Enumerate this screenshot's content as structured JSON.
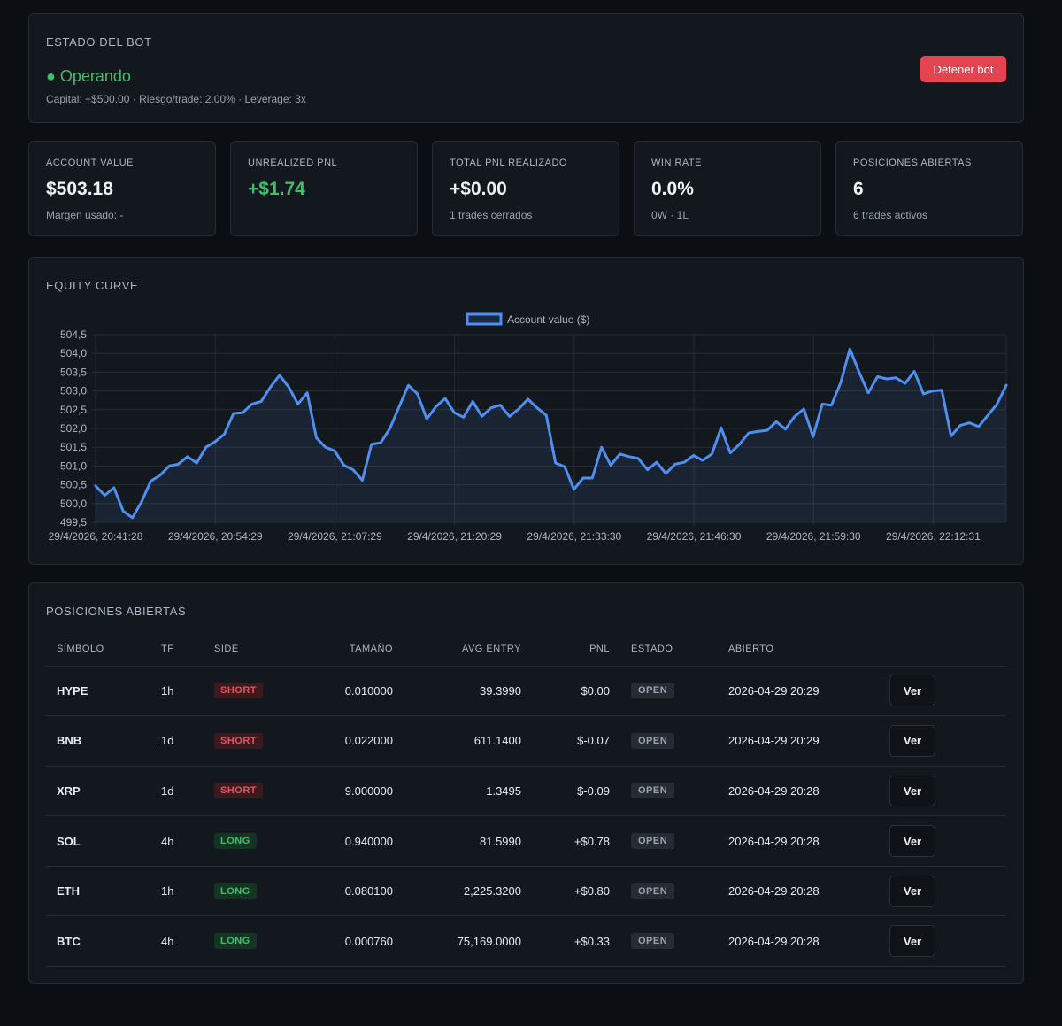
{
  "status": {
    "title": "ESTADO DEL BOT",
    "state": "● Operando",
    "meta": "Capital: +$500.00 · Riesgo/trade: 2.00% · Leverage: 3x",
    "stop_label": "Detener bot"
  },
  "stats": [
    {
      "label": "ACCOUNT VALUE",
      "value": "$503.18",
      "sub": "Margen usado: -"
    },
    {
      "label": "UNREALIZED PNL",
      "value": "+$1.74",
      "sub": ""
    },
    {
      "label": "TOTAL PNL REALIZADO",
      "value": "+$0.00",
      "sub": "1 trades cerrados"
    },
    {
      "label": "WIN RATE",
      "value": "0.0%",
      "sub": "0W · 1L"
    },
    {
      "label": "POSICIONES ABIERTAS",
      "value": "6",
      "sub": "6 trades activos"
    }
  ],
  "equity": {
    "title": "EQUITY CURVE"
  },
  "chart_data": {
    "type": "area",
    "legend": "Account value ($)",
    "legend_position": "top-center",
    "grid": true,
    "ylim": [
      499.5,
      504.5
    ],
    "y_ticks": [
      "504,5",
      "504,0",
      "503,5",
      "503,0",
      "502,5",
      "502,0",
      "501,5",
      "501,0",
      "500,5",
      "500,0",
      "499,5"
    ],
    "x_tick_labels": [
      "29/4/2026, 20:41:28",
      "29/4/2026, 20:54:29",
      "29/4/2026, 21:07:29",
      "29/4/2026, 21:20:29",
      "29/4/2026, 21:33:30",
      "29/4/2026, 21:46:30",
      "29/4/2026, 21:59:30",
      "29/4/2026, 22:12:31"
    ],
    "series": [
      {
        "name": "Account value ($)",
        "color": "#4f8ff0",
        "values": [
          500.47,
          500.22,
          500.42,
          499.8,
          499.62,
          500.05,
          500.6,
          500.75,
          501.0,
          501.05,
          501.25,
          501.08,
          501.5,
          501.65,
          501.85,
          502.4,
          502.42,
          502.65,
          502.72,
          503.1,
          503.42,
          503.1,
          502.65,
          502.95,
          501.75,
          501.5,
          501.4,
          501.02,
          500.9,
          500.62,
          501.58,
          501.62,
          502.0,
          502.58,
          503.15,
          502.92,
          502.25,
          502.58,
          502.8,
          502.42,
          502.3,
          502.72,
          502.32,
          502.55,
          502.62,
          502.32,
          502.52,
          502.78,
          502.55,
          502.35,
          501.08,
          500.98,
          500.38,
          500.68,
          500.68,
          501.5,
          501.02,
          501.32,
          501.25,
          501.2,
          500.9,
          501.1,
          500.8,
          501.05,
          501.1,
          501.28,
          501.15,
          501.32,
          502.02,
          501.35,
          501.58,
          501.88,
          501.92,
          501.95,
          502.18,
          501.98,
          502.32,
          502.52,
          501.78,
          502.65,
          502.62,
          503.22,
          504.12,
          503.5,
          502.95,
          503.38,
          503.32,
          503.35,
          503.2,
          503.52,
          502.92,
          503.0,
          503.02,
          501.8,
          502.08,
          502.15,
          502.05,
          502.35,
          502.65,
          503.15
        ]
      }
    ]
  },
  "positions": {
    "title": "POSICIONES ABIERTAS",
    "headers": [
      "SÍMBOLO",
      "TF",
      "SIDE",
      "TAMAÑO",
      "AVG ENTRY",
      "PNL",
      "ESTADO",
      "ABIERTO",
      ""
    ],
    "rows": [
      {
        "symbol": "HYPE",
        "tf": "1h",
        "side": "SHORT",
        "size": "0.010000",
        "entry": "39.3990",
        "pnl": "$0.00",
        "pnl_color": "red",
        "state": "OPEN",
        "opened": "2026-04-29 20:29",
        "action": "Ver"
      },
      {
        "symbol": "BNB",
        "tf": "1d",
        "side": "SHORT",
        "size": "0.022000",
        "entry": "611.1400",
        "pnl": "$-0.07",
        "pnl_color": "red",
        "state": "OPEN",
        "opened": "2026-04-29 20:29",
        "action": "Ver"
      },
      {
        "symbol": "XRP",
        "tf": "1d",
        "side": "SHORT",
        "size": "9.000000",
        "entry": "1.3495",
        "pnl": "$-0.09",
        "pnl_color": "red",
        "state": "OPEN",
        "opened": "2026-04-29 20:28",
        "action": "Ver"
      },
      {
        "symbol": "SOL",
        "tf": "4h",
        "side": "LONG",
        "size": "0.940000",
        "entry": "81.5990",
        "pnl": "+$0.78",
        "pnl_color": "green",
        "state": "OPEN",
        "opened": "2026-04-29 20:28",
        "action": "Ver"
      },
      {
        "symbol": "ETH",
        "tf": "1h",
        "side": "LONG",
        "size": "0.080100",
        "entry": "2,225.3200",
        "pnl": "+$0.80",
        "pnl_color": "green",
        "state": "OPEN",
        "opened": "2026-04-29 20:28",
        "action": "Ver"
      },
      {
        "symbol": "BTC",
        "tf": "4h",
        "side": "LONG",
        "size": "0.000760",
        "entry": "75,169.0000",
        "pnl": "+$0.33",
        "pnl_color": "green",
        "state": "OPEN",
        "opened": "2026-04-29 20:28",
        "action": "Ver"
      }
    ]
  }
}
